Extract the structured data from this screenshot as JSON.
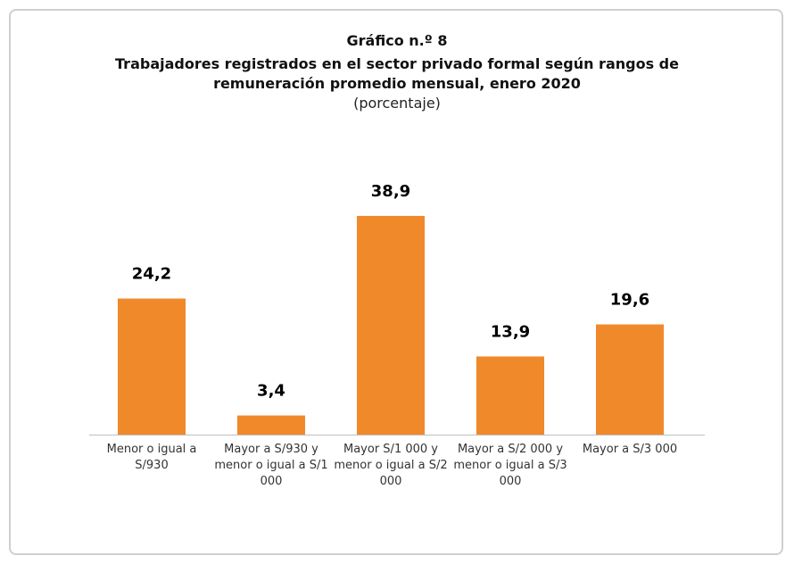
{
  "chart_data": {
    "type": "bar",
    "title": "Gráfico n.º 8",
    "subtitle": "Trabajadores registrados en el sector privado formal según rangos de remuneración promedio mensual, enero 2020",
    "unit_note": "(porcentaje)",
    "categories": [
      "Menor o igual a S/930",
      "Mayor a S/930 y menor o igual a S/1 000",
      "Mayor S/1 000 y menor o igual a S/2 000",
      "Mayor a S/2 000 y menor o igual a S/3 000",
      "Mayor a S/3 000"
    ],
    "values": [
      24.2,
      3.4,
      38.9,
      13.9,
      19.6
    ],
    "value_labels": [
      "24,2",
      "3,4",
      "38,9",
      "13,9",
      "19,6"
    ],
    "color": "#f0892a"
  }
}
